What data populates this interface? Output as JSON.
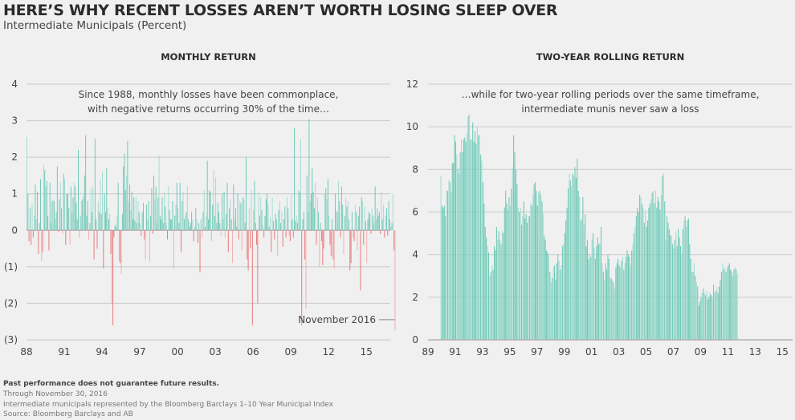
{
  "header": {
    "title": "HERE’S WHY RECENT LOSSES AREN’T WORTH LOSING SLEEP OVER",
    "subtitle": "Intermediate Municipals (Percent)"
  },
  "colors": {
    "positive": "#6ec9b7",
    "positive_light": "#a3dccf",
    "negative": "#e8787a",
    "negative_light": "#f2aeae",
    "grid": "#cfcfcf",
    "background": "#f0f0f0"
  },
  "footer": {
    "disclaimer": "Past performance does not guarantee future results.",
    "through": "Through November 30, 2016",
    "index_note": "Intermediate municipals represented by the Bloomberg Barclays 1–10 Year Municipal Index",
    "source": "Source: Bloomberg Barclays and AB"
  },
  "chart_data": [
    {
      "type": "bar",
      "title": "MONTHLY RETURN",
      "annotation": [
        "Since 1988, monthly losses have been commonplace,",
        "with negative returns occurring 30% of the time…"
      ],
      "callout": "November 2016",
      "ylabel": "Percent",
      "ylim": [
        -3,
        4
      ],
      "yticks": [
        4,
        3,
        2,
        1,
        0,
        -1,
        -2,
        -3
      ],
      "ytick_labels": [
        "4",
        "3",
        "2",
        "1",
        "0",
        "(1)",
        "(2)",
        "(3)"
      ],
      "xticks": [
        "88",
        "91",
        "94",
        "97",
        "00",
        "03",
        "06",
        "09",
        "12",
        "15"
      ],
      "xtick_years": [
        1988,
        1991,
        1994,
        1997,
        2000,
        2003,
        2006,
        2009,
        2012,
        2015
      ],
      "start": "1988-01",
      "end": "2016-11",
      "grid": true,
      "negative_share_pct": 30,
      "values": [
        2.55,
        1.0,
        -0.3,
        0.6,
        -0.4,
        0.75,
        -0.2,
        0.4,
        1.25,
        0.3,
        1.05,
        -0.65,
        0.2,
        1.4,
        -0.85,
        -0.6,
        1.8,
        1.65,
        1.2,
        1.35,
        0.4,
        -0.55,
        1.3,
        0.2,
        0.8,
        0.85,
        0.8,
        0.3,
        0.5,
        1.75,
        -0.05,
        0.85,
        1.3,
        0.6,
        -0.1,
        1.55,
        1.4,
        -0.4,
        1.0,
        1.0,
        0.6,
        -0.4,
        1.2,
        0.5,
        0.9,
        1.3,
        1.2,
        0.75,
        0.3,
        2.2,
        -0.2,
        0.4,
        0.8,
        0.85,
        0.95,
        1.5,
        2.6,
        0.4,
        0.8,
        -0.25,
        0.2,
        1.15,
        0.5,
        1.2,
        -0.8,
        2.5,
        0.3,
        -0.5,
        0.8,
        0.5,
        1.4,
        0.45,
        1.6,
        -1.05,
        1.0,
        0.5,
        1.7,
        0.6,
        0.3,
        0.45,
        -0.65,
        -2.0,
        -2.6,
        -0.2,
        0.15,
        0.1,
        0.4,
        1.3,
        -0.85,
        -0.9,
        -1.2,
        0.45,
        1.75,
        2.1,
        1.1,
        1.5,
        2.45,
        0.8,
        1.25,
        0.55,
        1.05,
        0.3,
        0.9,
        0.25,
        0.9,
        0.2,
        0.8,
        0.5,
        0.2,
        -0.15,
        0.5,
        0.75,
        -0.25,
        -0.8,
        0.7,
        0.3,
        0.8,
        -0.85,
        0.4,
        1.15,
        -0.1,
        1.5,
        0.85,
        1.2,
        0.2,
        0.9,
        2.05,
        0.4,
        0.3,
        0.9,
        0.2,
        1.05,
        0.65,
        0.2,
        -0.25,
        1.2,
        0.55,
        0.3,
        0.3,
        0.8,
        -1.05,
        0.4,
        0.7,
        1.3,
        0.6,
        0.2,
        1.3,
        -0.6,
        0.8,
        1.05,
        0.3,
        0.4,
        0.5,
        1.2,
        0.3,
        0.1,
        0.2,
        0.5,
        0.3,
        -0.3,
        0.1,
        0.6,
        0.3,
        -0.35,
        0.2,
        -1.15,
        0.3,
        -0.2,
        0.5,
        1.1,
        0.1,
        0.4,
        1.9,
        0.3,
        1.1,
        1.05,
        -0.3,
        0.7,
        1.65,
        0.4,
        1.45,
        0.2,
        0.75,
        0.5,
        0.2,
        -0.15,
        1.0,
        0.3,
        1.05,
        -0.2,
        0.45,
        1.3,
        -0.6,
        0.6,
        0.85,
        0.3,
        -0.9,
        1.25,
        0.3,
        0.6,
        0.1,
        1.0,
        -0.25,
        0.8,
        0.75,
        -0.55,
        0.9,
        0.85,
        0.2,
        2.0,
        -0.8,
        -1.1,
        0.6,
        -0.5,
        1.1,
        -2.6,
        0.55,
        1.35,
        0.2,
        -0.4,
        -2.0,
        1.05,
        0.4,
        0.9,
        0.55,
        0.15,
        -0.2,
        0.4,
        0.85,
        1.0,
        0.7,
        0.1,
        0.35,
        -0.6,
        0.9,
        0.25,
        -0.25,
        0.45,
        0.3,
        -0.7,
        0.55,
        0.8,
        0.2,
        0.5,
        -0.45,
        0.3,
        0.65,
        -0.2,
        0.9,
        0.6,
        -0.15,
        -0.3,
        1.0,
        0.3,
        -0.2,
        2.8,
        0.25,
        0.4,
        0.2,
        1.1,
        1.05,
        2.5,
        -2.6,
        0.3,
        0.5,
        -0.8,
        -2.15,
        1.5,
        0.5,
        3.05,
        0.8,
        1.0,
        1.7,
        1.05,
        0.6,
        1.3,
        -0.4,
        0.9,
        0.5,
        -1.0,
        0.2,
        -0.3,
        -0.95,
        -0.5,
        1.0,
        1.15,
        0.85,
        1.4,
        0.4,
        -0.4,
        -0.7,
        0.3,
        -0.8,
        -1.05,
        1.0,
        0.55,
        0.5,
        1.35,
        0.8,
        -0.2,
        1.2,
        0.7,
        -0.65,
        0.4,
        0.9,
        0.65,
        0.8,
        0.3,
        -1.1,
        -0.9,
        0.5,
        -0.2,
        -0.3,
        0.7,
        0.5,
        -0.55,
        0.4,
        0.65,
        -1.65,
        0.9,
        0.8,
        -0.4,
        0.65,
        0.25,
        -0.9,
        0.3,
        0.5,
        0.45,
        -0.1,
        0.6,
        0.4,
        0.2,
        1.2,
        0.3,
        0.6,
        0.4,
        0.5,
        -0.1,
        1.05,
        0.3,
        0.7,
        -0.2,
        0.4,
        0.6,
        -0.15,
        0.8,
        0.3,
        0.1,
        0.2,
        1.0,
        -0.55,
        -2.75
      ]
    },
    {
      "type": "bar",
      "title": "TWO-YEAR ROLLING RETURN",
      "annotation": [
        "…while for two-year rolling periods over the same timeframe,",
        "intermediate munis never saw a loss"
      ],
      "ylabel": "Percent",
      "ylim": [
        0,
        12
      ],
      "yticks": [
        12,
        10,
        8,
        6,
        4,
        2,
        0
      ],
      "ytick_labels": [
        "12",
        "10",
        "8",
        "6",
        "4",
        "2",
        "0"
      ],
      "xticks": [
        "89",
        "91",
        "93",
        "95",
        "97",
        "99",
        "01",
        "03",
        "05",
        "07",
        "09",
        "11",
        "13",
        "15"
      ],
      "xtick_years": [
        1989,
        1991,
        1993,
        1995,
        1997,
        1999,
        2001,
        2003,
        2005,
        2007,
        2009,
        2011,
        2013,
        2015
      ],
      "start": "1989-12",
      "end": "2016-11",
      "grid": true,
      "values": [
        7.7,
        6.3,
        6.2,
        6.3,
        5.8,
        7.0,
        7.0,
        7.5,
        7.4,
        6.9,
        8.3,
        8.3,
        9.6,
        9.3,
        8.7,
        8.0,
        7.8,
        8.8,
        9.4,
        8.8,
        9.4,
        9.5,
        9.3,
        9.7,
        10.5,
        10.6,
        9.4,
        9.4,
        10.2,
        9.3,
        9.8,
        9.2,
        10.0,
        9.6,
        9.6,
        8.7,
        8.4,
        7.4,
        6.4,
        5.3,
        4.8,
        4.4,
        4.1,
        3.0,
        3.2,
        3.5,
        3.3,
        4.4,
        4.2,
        5.3,
        4.7,
        5.1,
        4.7,
        4.5,
        5.1,
        5.0,
        6.2,
        7.0,
        6.4,
        6.1,
        6.7,
        6.3,
        7.1,
        8.1,
        9.6,
        8.8,
        8.0,
        7.3,
        6.2,
        6.0,
        6.2,
        5.4,
        5.8,
        6.5,
        5.7,
        5.9,
        5.5,
        5.8,
        5.8,
        6.4,
        6.3,
        6.8,
        7.3,
        7.4,
        7.0,
        6.3,
        6.9,
        7.0,
        6.8,
        6.5,
        5.9,
        4.9,
        4.7,
        4.2,
        4.1,
        3.9,
        3.2,
        2.7,
        2.9,
        3.4,
        3.5,
        2.8,
        3.6,
        4.0,
        3.7,
        3.3,
        3.5,
        4.4,
        4.5,
        5.0,
        5.6,
        6.2,
        7.1,
        7.8,
        7.5,
        7.2,
        7.8,
        7.7,
        8.1,
        7.6,
        8.5,
        7.0,
        6.7,
        5.6,
        5.7,
        6.7,
        5.4,
        5.9,
        4.4,
        4.7,
        3.8,
        4.0,
        3.9,
        4.7,
        5.0,
        4.3,
        3.8,
        4.4,
        4.8,
        4.5,
        4.5,
        5.3,
        3.6,
        3.2,
        2.8,
        3.6,
        3.3,
        4.0,
        3.8,
        2.9,
        2.9,
        2.8,
        2.7,
        2.4,
        3.4,
        3.6,
        3.8,
        3.5,
        3.4,
        3.7,
        3.9,
        3.3,
        3.6,
        3.9,
        4.2,
        4.0,
        3.9,
        3.5,
        4.2,
        4.5,
        5.0,
        5.3,
        5.8,
        6.2,
        6.0,
        6.8,
        6.7,
        6.4,
        6.2,
        5.5,
        6.1,
        5.3,
        5.6,
        6.2,
        6.4,
        6.6,
        6.9,
        7.0,
        6.4,
        7.0,
        6.2,
        6.7,
        6.5,
        6.1,
        6.8,
        7.7,
        7.8,
        6.5,
        4.7,
        5.8,
        5.5,
        5.2,
        4.9,
        4.9,
        4.5,
        4.3,
        4.7,
        5.1,
        4.4,
        5.2,
        4.8,
        4.4,
        4.0,
        5.2,
        5.6,
        5.8,
        5.3,
        5.6,
        5.7,
        4.5,
        3.8,
        3.2,
        3.2,
        3.6,
        3.0,
        2.7,
        2.5,
        1.6,
        1.8,
        2.0,
        2.2,
        2.4,
        2.2,
        2.1,
        2.3,
        1.9,
        2.0,
        2.2,
        2.1,
        2.0,
        2.6,
        2.2,
        2.3,
        2.5,
        2.2,
        2.5,
        2.8,
        3.2,
        3.6,
        3.3,
        3.4,
        3.2,
        3.4,
        3.5,
        3.6,
        3.3,
        3.2,
        3.0,
        3.3,
        3.4,
        3.3,
        3.1
      ]
    }
  ]
}
